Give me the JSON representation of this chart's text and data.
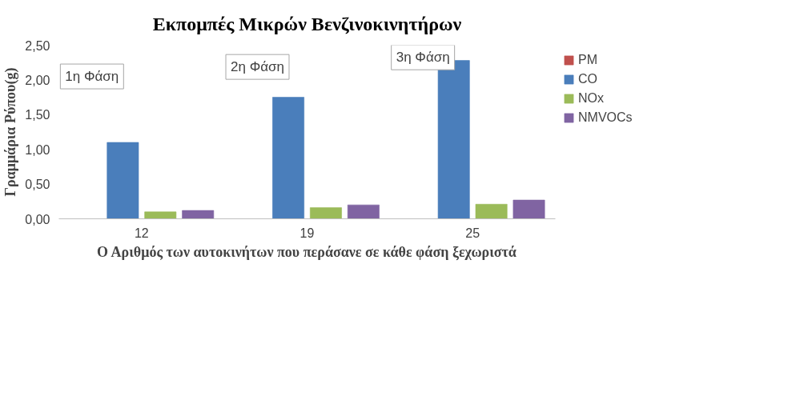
{
  "chart_data": {
    "type": "bar",
    "title": "Εκπομπές Μικρών Βενζινοκινητήρων",
    "xlabel": "Ο Αριθμός των αυτοκινήτων που περάσανε σε κάθε φάση ξεχωριστά",
    "ylabel": "Γραμμάρια Ρύπου(g)",
    "categories": [
      "12",
      "19",
      "25"
    ],
    "series": [
      {
        "name": "PM",
        "color": "#c0504d",
        "values": [
          0,
          0,
          0
        ]
      },
      {
        "name": "CO",
        "color": "#4a7ebb",
        "values": [
          1.1,
          1.75,
          2.28
        ]
      },
      {
        "name": "NOx",
        "color": "#9bbb59",
        "values": [
          0.1,
          0.16,
          0.21
        ]
      },
      {
        "name": "NMVOCs",
        "color": "#8064a2",
        "values": [
          0.12,
          0.2,
          0.27
        ]
      }
    ],
    "ylim": [
      0,
      2.5
    ],
    "yticks": [
      {
        "value": 0,
        "label": "0,00"
      },
      {
        "value": 0.5,
        "label": "0,50"
      },
      {
        "value": 1,
        "label": "1,00"
      },
      {
        "value": 1.5,
        "label": "1,50"
      },
      {
        "value": 2,
        "label": "2,00"
      },
      {
        "value": 2.5,
        "label": "2,50"
      }
    ],
    "annotations": [
      "1η Φάση",
      "2η Φάση",
      "3η Φάση"
    ],
    "grid": false,
    "legend": "right"
  }
}
